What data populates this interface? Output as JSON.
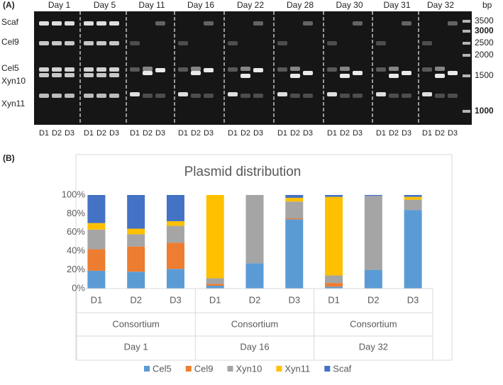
{
  "panel_labels": [
    "(A)",
    "(B)"
  ],
  "gel": {
    "days": [
      "Day 1",
      "Day 5",
      "Day 11",
      "Day 16",
      "Day 22",
      "Day 28",
      "Day 30",
      "Day 31",
      "Day 32"
    ],
    "lanes": [
      "D1",
      "D2",
      "D3"
    ],
    "bands": [
      "Scaf",
      "Cel9",
      "Cel5",
      "Xyn10",
      "Xyn11"
    ],
    "ladder_unit": "bp",
    "ladder": [
      3500,
      3000,
      2500,
      2000,
      1500,
      1000
    ],
    "ladder_bold": [
      false,
      true,
      false,
      false,
      false,
      true
    ]
  },
  "chart_data": {
    "type": "bar",
    "stacked": true,
    "title": "Plasmid distribution",
    "categories": [
      "D1",
      "D2",
      "D3",
      "D1",
      "D2",
      "D3",
      "D1",
      "D2",
      "D3"
    ],
    "group_levels": [
      [
        "Consortium",
        "Consortium",
        "Consortium"
      ],
      [
        "Day 1",
        "Day 16",
        "Day 32"
      ]
    ],
    "series": [
      {
        "name": "Cel5",
        "color": "#5b9bd5",
        "values": [
          19,
          18,
          21,
          3,
          27,
          74,
          2,
          20,
          84
        ]
      },
      {
        "name": "Cel9",
        "color": "#ed7d31",
        "values": [
          23,
          27,
          28,
          2,
          0,
          1,
          4,
          0,
          0
        ]
      },
      {
        "name": "Xyn10",
        "color": "#a5a5a5",
        "values": [
          21,
          13,
          18,
          6,
          73,
          18,
          8,
          79,
          11
        ]
      },
      {
        "name": "Xyn11",
        "color": "#ffc000",
        "values": [
          7,
          6,
          5,
          89,
          0,
          4,
          84,
          0,
          3
        ]
      },
      {
        "name": "Scaf",
        "color": "#4472c4",
        "values": [
          30,
          36,
          28,
          0,
          0,
          3,
          2,
          1,
          2
        ]
      }
    ],
    "ylim": [
      0,
      100
    ],
    "yticks": [
      {
        "value": 0,
        "label": "0%"
      },
      {
        "value": 20,
        "label": "20%"
      },
      {
        "value": 40,
        "label": "40%"
      },
      {
        "value": 60,
        "label": "60%"
      },
      {
        "value": 80,
        "label": "80%"
      },
      {
        "value": 100,
        "label": "100%"
      }
    ],
    "grid": false,
    "legend": "bottom"
  }
}
